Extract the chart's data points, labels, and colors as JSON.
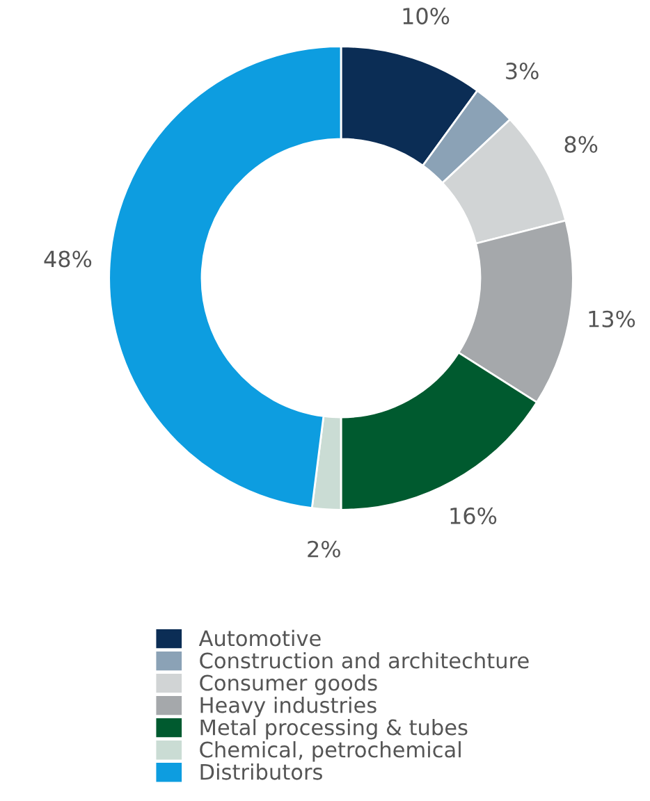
{
  "chart_data": {
    "type": "donut",
    "categories": [
      "Automotive",
      "Construction and architechture",
      "Consumer goods",
      "Heavy industries",
      "Metal processing & tubes",
      "Chemical, petrochemical",
      "Distributors"
    ],
    "values": [
      10,
      3,
      8,
      13,
      16,
      2,
      48
    ],
    "value_labels": [
      "10%",
      "3%",
      "8%",
      "13%",
      "16%",
      "2%",
      "48%"
    ],
    "colors": [
      "#0b2d55",
      "#8ba2b6",
      "#d1d4d5",
      "#a5a8ab",
      "#005a2f",
      "#cadcd4",
      "#0d9de0"
    ],
    "legend": "bottom"
  }
}
